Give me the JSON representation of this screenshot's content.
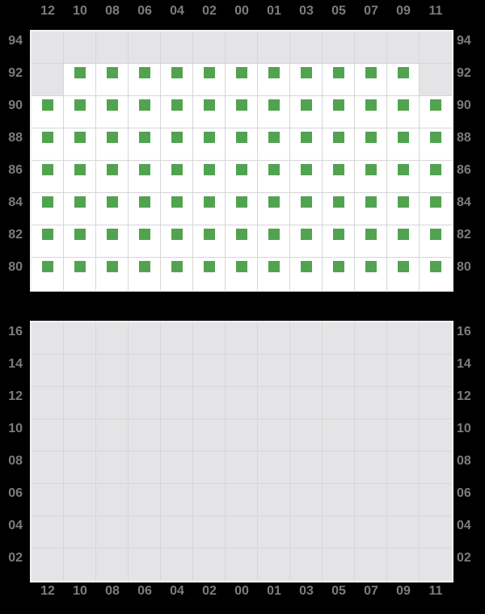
{
  "colors": {
    "background": "#000000",
    "available_green": "#52a350",
    "cell_empty_fill": "#e4e4e6",
    "cell_open_fill": "#ffffff",
    "grid_line": "#d6d6d9",
    "grid_rim": "#f2f2f4",
    "label_text": "#7b7b81"
  },
  "columns": [
    "12",
    "10",
    "08",
    "06",
    "04",
    "02",
    "00",
    "01",
    "03",
    "05",
    "07",
    "09",
    "11"
  ],
  "upper_grid": {
    "row_labels": [
      "94",
      "92",
      "90",
      "88",
      "86",
      "84",
      "82",
      "80"
    ],
    "cells": [
      [
        "empty",
        "empty",
        "empty",
        "empty",
        "empty",
        "empty",
        "empty",
        "empty",
        "empty",
        "empty",
        "empty",
        "empty",
        "empty"
      ],
      [
        "empty",
        "available",
        "available",
        "available",
        "available",
        "available",
        "available",
        "available",
        "available",
        "available",
        "available",
        "available",
        "empty"
      ],
      [
        "available",
        "available",
        "available",
        "available",
        "available",
        "available",
        "available",
        "available",
        "available",
        "available",
        "available",
        "available",
        "available"
      ],
      [
        "available",
        "available",
        "available",
        "available",
        "available",
        "available",
        "available",
        "available",
        "available",
        "available",
        "available",
        "available",
        "available"
      ],
      [
        "available",
        "available",
        "available",
        "available",
        "available",
        "available",
        "available",
        "available",
        "available",
        "available",
        "available",
        "available",
        "available"
      ],
      [
        "available",
        "available",
        "available",
        "available",
        "available",
        "available",
        "available",
        "available",
        "available",
        "available",
        "available",
        "available",
        "available"
      ],
      [
        "available",
        "available",
        "available",
        "available",
        "available",
        "available",
        "available",
        "available",
        "available",
        "available",
        "available",
        "available",
        "available"
      ],
      [
        "available",
        "available",
        "available",
        "available",
        "available",
        "available",
        "available",
        "available",
        "available",
        "available",
        "available",
        "available",
        "available"
      ]
    ]
  },
  "lower_grid": {
    "row_labels": [
      "16",
      "14",
      "12",
      "10",
      "08",
      "06",
      "04",
      "02"
    ],
    "cells": [
      [
        "empty",
        "empty",
        "empty",
        "empty",
        "empty",
        "empty",
        "empty",
        "empty",
        "empty",
        "empty",
        "empty",
        "empty",
        "empty"
      ],
      [
        "empty",
        "empty",
        "empty",
        "empty",
        "empty",
        "empty",
        "empty",
        "empty",
        "empty",
        "empty",
        "empty",
        "empty",
        "empty"
      ],
      [
        "empty",
        "empty",
        "empty",
        "empty",
        "empty",
        "empty",
        "empty",
        "empty",
        "empty",
        "empty",
        "empty",
        "empty",
        "empty"
      ],
      [
        "empty",
        "empty",
        "empty",
        "empty",
        "empty",
        "empty",
        "empty",
        "empty",
        "empty",
        "empty",
        "empty",
        "empty",
        "empty"
      ],
      [
        "empty",
        "empty",
        "empty",
        "empty",
        "empty",
        "empty",
        "empty",
        "empty",
        "empty",
        "empty",
        "empty",
        "empty",
        "empty"
      ],
      [
        "empty",
        "empty",
        "empty",
        "empty",
        "empty",
        "empty",
        "empty",
        "empty",
        "empty",
        "empty",
        "empty",
        "empty",
        "empty"
      ],
      [
        "empty",
        "empty",
        "empty",
        "empty",
        "empty",
        "empty",
        "empty",
        "empty",
        "empty",
        "empty",
        "empty",
        "empty",
        "empty"
      ],
      [
        "empty",
        "empty",
        "empty",
        "empty",
        "empty",
        "empty",
        "empty",
        "empty",
        "empty",
        "empty",
        "empty",
        "empty",
        "empty"
      ]
    ]
  }
}
